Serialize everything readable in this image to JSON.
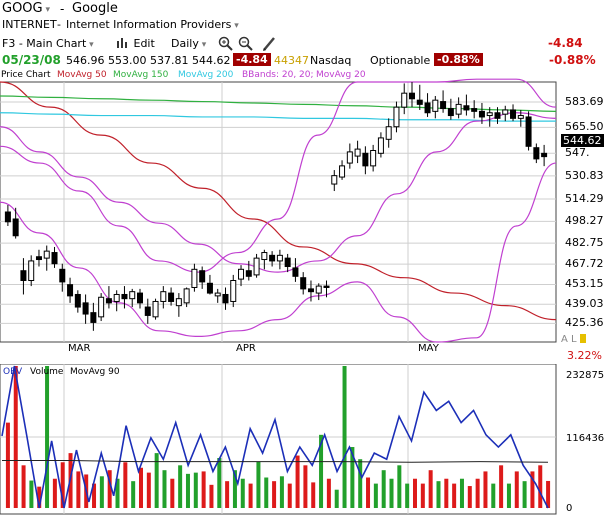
{
  "header": {
    "symbol": "GOOG",
    "name": "Google",
    "exchange": "INTERNET",
    "industry": "Internet Information Providers",
    "change_big": "-4.84",
    "pct_big": "-0.88%"
  },
  "toolbar": {
    "chart_name": "F3 - Main Chart",
    "edit_label": "Edit",
    "period": "Daily"
  },
  "quote": {
    "date": "05/23/08",
    "open": "546.96",
    "high": "553.00",
    "low": "537.81",
    "last": "544.62",
    "change": "-4.84",
    "volume": "44347",
    "market": "Nasdaq",
    "optionable": "Optionable",
    "pct": "-0.88%"
  },
  "legend": {
    "price_chart": "Price Chart",
    "ma50": "MovAvg 50",
    "ma150": "MovAvg 150",
    "ma200": "MovAvg 200",
    "bbands": "BBands: 20, 20;",
    "ma20": "MovAvg 20"
  },
  "volume_legend": {
    "obv": "OBV",
    "volume": "Volume",
    "ma90": "MovAvg 90"
  },
  "price_axis": {
    "last_price": "544.62",
    "ticks": [
      "583.69",
      "565.50",
      "547.",
      "530.83",
      "514.29",
      "498.27",
      "482.75",
      "467.72",
      "453.15",
      "439.03",
      "425.36"
    ],
    "tick_values": [
      583.69,
      565.5,
      547.0,
      530.83,
      514.29,
      498.27,
      482.75,
      467.72,
      453.15,
      439.03,
      425.36
    ],
    "months": [
      "MAR",
      "APR",
      "MAY"
    ],
    "al_label": "A L",
    "al_pct": "3.22%"
  },
  "volume_axis": {
    "ticks": [
      "232875",
      "116436",
      "0"
    ],
    "tick_values": [
      232875,
      116436,
      0
    ]
  },
  "colors": {
    "up": "#22a02b",
    "down": "#dd1a1a",
    "ma50": "#c0202a",
    "ma150": "#30b040",
    "ma200": "#30c8e0",
    "bbands": "#c040d0",
    "obv": "#1c2fb8",
    "loss_chip": "#a00000"
  },
  "chart_data": [
    {
      "type": "candlestick",
      "title": "GOOG",
      "ylim": [
        412,
        598
      ],
      "x_labels": [
        "MAR",
        "APR",
        "MAY"
      ],
      "candles": [
        [
          505,
          510,
          495,
          498
        ],
        [
          500,
          508,
          486,
          488
        ],
        [
          463,
          472,
          446,
          456
        ],
        [
          456,
          474,
          452,
          470
        ],
        [
          473,
          478,
          466,
          471
        ],
        [
          472,
          481,
          463,
          477
        ],
        [
          476,
          480,
          465,
          468
        ],
        [
          464,
          468,
          448,
          455
        ],
        [
          453,
          458,
          440,
          445
        ],
        [
          446,
          449,
          433,
          437
        ],
        [
          440,
          446,
          425,
          432
        ],
        [
          433,
          440,
          420,
          426
        ],
        [
          430,
          447,
          427,
          444
        ],
        [
          443,
          452,
          436,
          440
        ],
        [
          441,
          449,
          434,
          446
        ],
        [
          446,
          452,
          436,
          443
        ],
        [
          443,
          450,
          437,
          448
        ],
        [
          447,
          450,
          436,
          440
        ],
        [
          437,
          443,
          425,
          431
        ],
        [
          430,
          443,
          428,
          441
        ],
        [
          441,
          452,
          436,
          448
        ],
        [
          447,
          451,
          438,
          441
        ],
        [
          438,
          447,
          430,
          443
        ],
        [
          440,
          451,
          437,
          450
        ],
        [
          451,
          468,
          448,
          464
        ],
        [
          463,
          466,
          450,
          455
        ],
        [
          454,
          460,
          446,
          447
        ],
        [
          445,
          450,
          440,
          447
        ],
        [
          446,
          451,
          435,
          440
        ],
        [
          441,
          460,
          437,
          456
        ],
        [
          457,
          467,
          452,
          464
        ],
        [
          463,
          470,
          456,
          459
        ],
        [
          460,
          475,
          458,
          472
        ],
        [
          471,
          478,
          464,
          476
        ],
        [
          474,
          477,
          466,
          470
        ],
        [
          470,
          478,
          464,
          474
        ],
        [
          472,
          475,
          462,
          466
        ],
        [
          465,
          472,
          455,
          459
        ],
        [
          458,
          462,
          446,
          450
        ],
        [
          450,
          456,
          441,
          448
        ],
        [
          447,
          454,
          442,
          452
        ],
        [
          452,
          456,
          444,
          451
        ],
        [
          525,
          535,
          520,
          531
        ],
        [
          530,
          542,
          528,
          538
        ],
        [
          540,
          554,
          536,
          548
        ],
        [
          545,
          556,
          540,
          550
        ],
        [
          547,
          552,
          532,
          538
        ],
        [
          538,
          553,
          534,
          549
        ],
        [
          547,
          562,
          544,
          558
        ],
        [
          557,
          572,
          551,
          566
        ],
        [
          566,
          584,
          562,
          580
        ],
        [
          580,
          597,
          575,
          590
        ],
        [
          590,
          598,
          580,
          586
        ],
        [
          585,
          596,
          578,
          582
        ],
        [
          583,
          590,
          573,
          576
        ],
        [
          577,
          588,
          572,
          585
        ],
        [
          584,
          592,
          576,
          579
        ],
        [
          579,
          586,
          571,
          574
        ],
        [
          575,
          587,
          572,
          582
        ],
        [
          581,
          589,
          574,
          578
        ],
        [
          579,
          585,
          572,
          577
        ],
        [
          577,
          583,
          568,
          573
        ],
        [
          574,
          580,
          566,
          576
        ],
        [
          576,
          580,
          568,
          572
        ],
        [
          575,
          581,
          570,
          578
        ],
        [
          578,
          582,
          570,
          572
        ],
        [
          572,
          578,
          566,
          574
        ],
        [
          573,
          577,
          549,
          552
        ],
        [
          551,
          554,
          540,
          543
        ],
        [
          546.96,
          553,
          537.81,
          544.62
        ]
      ],
      "series": [
        {
          "name": "MovAvg 50",
          "values": [
            598,
            580,
            560,
            540,
            522,
            500,
            480,
            468,
            458,
            447,
            438,
            428
          ]
        },
        {
          "name": "MovAvg 150",
          "values": [
            588,
            587,
            586,
            585,
            584,
            583,
            582,
            581,
            580,
            579,
            578,
            577
          ]
        },
        {
          "name": "MovAvg 200",
          "values": [
            576,
            575,
            574,
            574,
            573,
            573,
            572,
            572,
            571,
            571,
            570,
            570
          ]
        },
        {
          "name": "MovAvg 20",
          "values": [
            566,
            548,
            530,
            512,
            497,
            482,
            468,
            462,
            470,
            488,
            518,
            548,
            570,
            576,
            572
          ]
        },
        {
          "name": "BBands upper",
          "values": [
            552,
            540,
            520,
            495,
            470,
            462,
            476,
            500,
            560,
            598,
            598,
            598,
            600,
            600,
            580
          ]
        },
        {
          "name": "BBands lower",
          "values": [
            512,
            490,
            465,
            440,
            420,
            416,
            420,
            428,
            445,
            455,
            430,
            412,
            415,
            495,
            540
          ]
        }
      ]
    },
    {
      "type": "bar",
      "title": "Volume",
      "ylim": [
        0,
        232875
      ],
      "values": [
        140000,
        232875,
        70000,
        45000,
        35000,
        232875,
        48000,
        75000,
        90000,
        60000,
        55000,
        40000,
        52000,
        62000,
        48000,
        75000,
        44000,
        66000,
        58000,
        90000,
        62000,
        48000,
        70000,
        56000,
        58000,
        60000,
        38000,
        82000,
        44000,
        62000,
        48000,
        40000,
        76000,
        50000,
        44000,
        52000,
        40000,
        86000,
        70000,
        42000,
        120000,
        48000,
        30000,
        232875,
        100000,
        80000,
        50000,
        40000,
        62000,
        48000,
        70000,
        40000,
        48000,
        40000,
        62000,
        44000,
        48000,
        40000,
        48000,
        36000,
        48000,
        60000,
        40000,
        70000,
        40000,
        60000,
        44000,
        60000,
        70000,
        44347
      ],
      "series": [
        {
          "name": "OBV",
          "values": [
            118000,
            232875,
            118000,
            0,
            110000,
            0,
            95000,
            10000,
            90000,
            20000,
            135000,
            60000,
            115000,
            80000,
            140000,
            70000,
            120000,
            60000,
            100000,
            40000,
            130000,
            90000,
            145000,
            60000,
            100000,
            70000,
            120000,
            60000,
            100000,
            50000,
            90000,
            80000,
            150000,
            110000,
            190000,
            160000,
            175000,
            140000,
            160000,
            120000,
            100000,
            120000,
            70000,
            40000,
            0
          ]
        },
        {
          "name": "MovAvg 90",
          "values": [
            78000,
            78000,
            76000,
            76000,
            76000,
            76000,
            75000,
            76000,
            75000
          ]
        }
      ]
    }
  ]
}
